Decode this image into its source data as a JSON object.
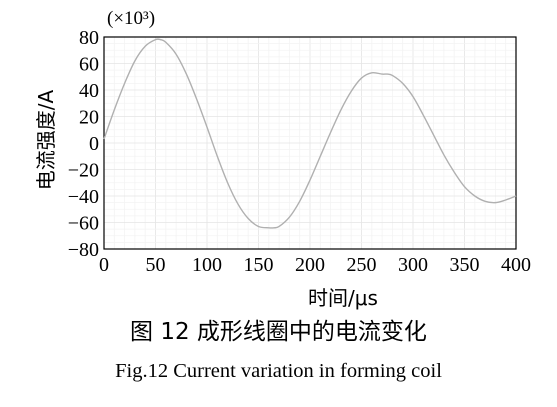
{
  "chart_data": {
    "type": "line",
    "xlabel": "时间/μs",
    "ylabel": "电流强度/A",
    "scale_note": "(×10³)",
    "xlim": [
      0,
      400
    ],
    "ylim": [
      -80,
      80
    ],
    "xticks": [
      "0",
      "50",
      "100",
      "150",
      "200",
      "250",
      "300",
      "350",
      "400"
    ],
    "yticks": [
      "80",
      "60",
      "40",
      "20",
      "0",
      "−20",
      "−40",
      "−60",
      "−80"
    ],
    "grid": true,
    "line_color": "#b0b0b0",
    "series": [
      {
        "x": [
          0,
          10,
          20,
          30,
          40,
          50,
          55,
          60,
          70,
          80,
          90,
          100,
          110,
          120,
          130,
          140,
          150,
          160,
          165,
          170,
          180,
          190,
          200,
          210,
          220,
          230,
          240,
          250,
          260,
          270,
          275,
          280,
          290,
          300,
          310,
          320,
          330,
          340,
          350,
          360,
          370,
          380,
          390,
          400
        ],
        "y": [
          3,
          25,
          45,
          62,
          73,
          78,
          78,
          76,
          67,
          52,
          33,
          12,
          -10,
          -30,
          -46,
          -57,
          -63,
          -64,
          -64,
          -63,
          -56,
          -44,
          -28,
          -10,
          8,
          25,
          39,
          49,
          53,
          52,
          52,
          51,
          45,
          35,
          21,
          6,
          -9,
          -22,
          -33,
          -40,
          -44,
          -45,
          -43,
          -40
        ]
      }
    ]
  },
  "caption": {
    "cn": "图 12  成形线圈中的电流变化",
    "en": "Fig.12  Current variation in forming coil"
  }
}
